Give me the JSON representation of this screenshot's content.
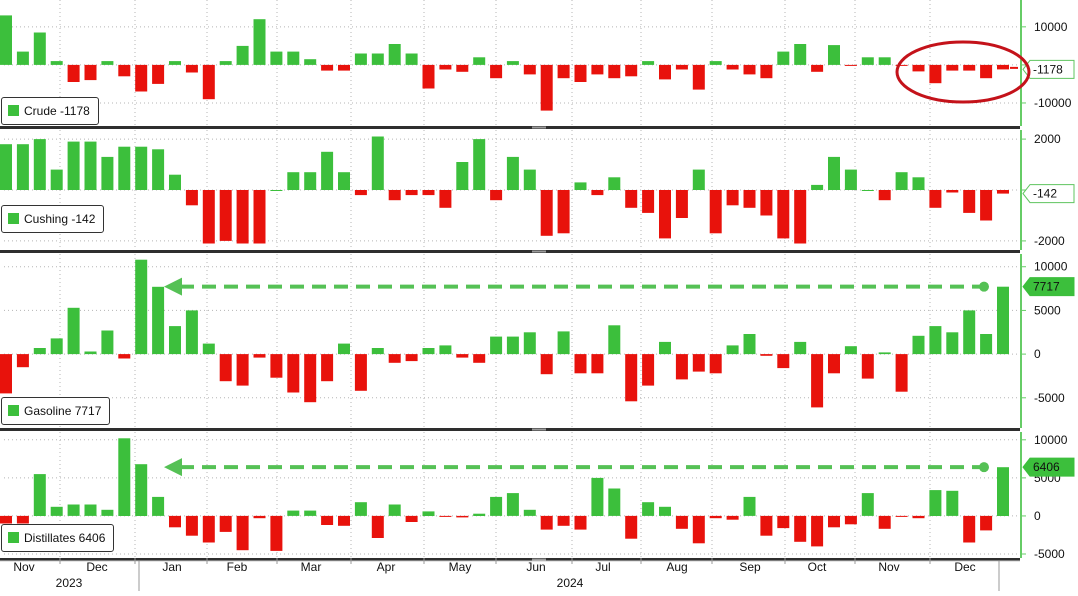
{
  "colors": {
    "positive": "#3cbf3c",
    "negative": "#e8120c",
    "annotation_arrow": "#55c155",
    "annotation_circle": "#c4121a",
    "grid": "#b5b5b5",
    "axis": "#66cc66"
  },
  "x_axis": {
    "months": [
      "Nov",
      "Dec",
      "Jan",
      "Feb",
      "Mar",
      "Apr",
      "May",
      "Jun",
      "Jul",
      "Aug",
      "Sep",
      "Oct",
      "Nov",
      "Dec"
    ],
    "years": [
      "2023",
      "2024"
    ]
  },
  "chart_data": [
    {
      "type": "bar",
      "name": "Crude",
      "legend": "Crude -1178",
      "latest_label": "-1178",
      "ylim": [
        -15000,
        16000
      ],
      "yticks": [
        10000,
        0,
        -10000
      ],
      "ytick_labels": [
        "10000",
        "",
        "-10000"
      ],
      "values": [
        13000,
        3500,
        8500,
        1000,
        -4500,
        -4000,
        1000,
        -3000,
        -7000,
        -5000,
        1000,
        -2000,
        -9000,
        1000,
        5000,
        12000,
        3500,
        3500,
        1500,
        -1500,
        -1500,
        3000,
        3000,
        5500,
        3000,
        -6200,
        -1200,
        -1800,
        2000,
        -3500,
        1000,
        -2500,
        -12000,
        -3500,
        -4500,
        -2500,
        -3500,
        -3000,
        1000,
        -3800,
        -1200,
        -6500,
        1000,
        -1200,
        -2500,
        -3500,
        3500,
        5500,
        -1800,
        5200,
        -200,
        2000,
        2000,
        -200,
        -1700,
        -4800,
        -1500,
        -1500,
        -3500,
        -1178
      ]
    },
    {
      "type": "bar",
      "name": "Cushing",
      "legend": "Cushing -142",
      "latest_label": "-142",
      "ylim": [
        -2200,
        2200
      ],
      "yticks": [
        2000,
        0,
        -2000
      ],
      "ytick_labels": [
        "2000",
        "",
        "-2000"
      ],
      "values": [
        1800,
        1800,
        2000,
        800,
        1900,
        1900,
        1300,
        1700,
        1700,
        1600,
        600,
        -600,
        -2100,
        -2000,
        -2100,
        -2100,
        0,
        700,
        700,
        1500,
        700,
        -200,
        2100,
        -400,
        -200,
        -200,
        -700,
        1100,
        2000,
        -400,
        1300,
        800,
        -1800,
        -1700,
        300,
        -200,
        500,
        -700,
        -900,
        -1900,
        -1100,
        800,
        -1700,
        -600,
        -700,
        -1000,
        -1900,
        -2100,
        200,
        1300,
        800,
        0,
        -400,
        700,
        500,
        -700,
        -100,
        -900,
        -1200,
        -142
      ]
    },
    {
      "type": "bar",
      "name": "Gasoline",
      "legend": "Gasoline 7717",
      "latest_label": "7717",
      "ylim": [
        -8000,
        11000
      ],
      "yticks": [
        10000,
        5000,
        0,
        -5000
      ],
      "ytick_labels": [
        "10000",
        "5000",
        "0",
        "-5000"
      ],
      "values": [
        -4500,
        -1500,
        700,
        1800,
        5300,
        300,
        2700,
        -500,
        10800,
        7700,
        3200,
        5000,
        1200,
        -3100,
        -3600,
        -400,
        -2700,
        -4400,
        -5500,
        -3100,
        1200,
        -4200,
        700,
        -1000,
        -800,
        700,
        1000,
        -400,
        -1000,
        2000,
        2000,
        2500,
        -2300,
        2600,
        -2200,
        -2200,
        3300,
        -5400,
        -3600,
        1400,
        -2900,
        -2000,
        -2200,
        1000,
        2300,
        -200,
        -1600,
        1400,
        -6100,
        -2200,
        900,
        -2800,
        200,
        -4300,
        2100,
        3200,
        2500,
        5000,
        2300,
        7717
      ]
    },
    {
      "type": "bar",
      "name": "Distillates",
      "legend": "Distillates 6406",
      "latest_label": "6406",
      "ylim": [
        -5000,
        10500
      ],
      "yticks": [
        10000,
        5000,
        0,
        -5000
      ],
      "ytick_labels": [
        "10000",
        "5000",
        "0",
        "-5000"
      ],
      "values": [
        -1000,
        -1000,
        5500,
        1200,
        1500,
        1500,
        800,
        10200,
        6800,
        2500,
        -1500,
        -2600,
        -3500,
        -2100,
        -4500,
        -300,
        -4600,
        700,
        700,
        -1200,
        -1300,
        1800,
        -2900,
        1500,
        -800,
        600,
        -100,
        -200,
        300,
        2500,
        3000,
        800,
        -1800,
        -1300,
        -1800,
        5000,
        3600,
        -3000,
        1800,
        1200,
        -1700,
        -3600,
        -300,
        -500,
        2500,
        -2600,
        -1600,
        -3400,
        -4000,
        -1500,
        -1100,
        3000,
        -1700,
        -100,
        -300,
        3400,
        3300,
        -3500,
        -1900,
        6406
      ]
    }
  ]
}
